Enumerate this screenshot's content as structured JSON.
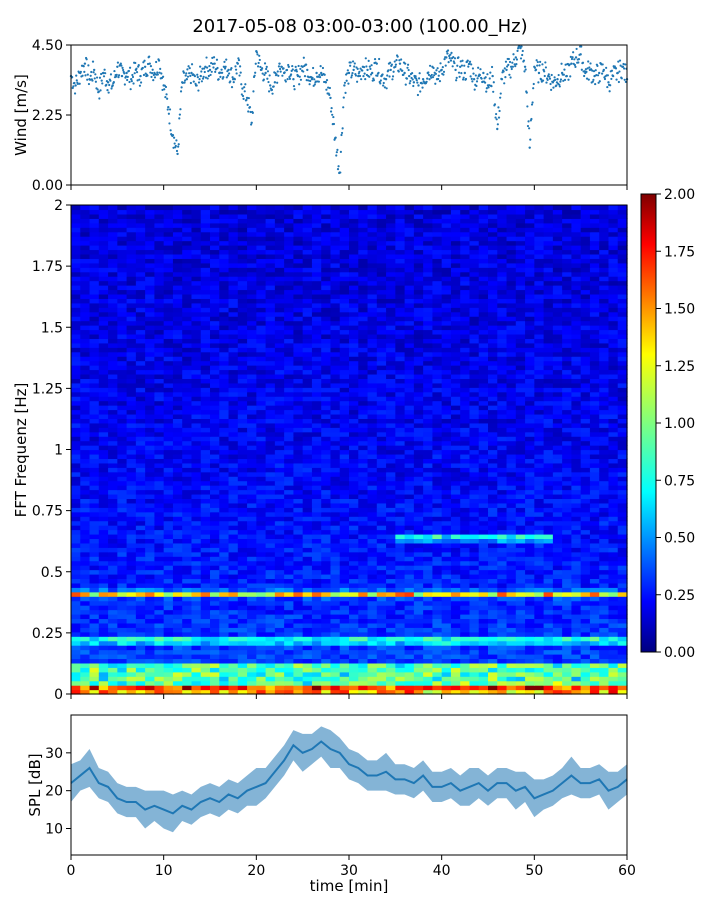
{
  "figure": {
    "title": "2017-05-08 03:00-03:00 (100.00_Hz)"
  },
  "chart_data": [
    {
      "type": "scatter",
      "ylabel": "Wind [m/s]",
      "ylim": [
        0,
        4.5
      ],
      "yticks": [
        "0.00",
        "2.25",
        "4.50"
      ],
      "xlim": [
        0,
        60
      ],
      "color": "#1f77b4",
      "x": [
        0,
        0.5,
        1,
        1.5,
        2,
        2.5,
        3,
        3.5,
        4,
        4.5,
        5,
        5.5,
        6,
        6.5,
        7,
        7.5,
        8,
        8.5,
        9,
        9.5,
        10,
        10.5,
        11,
        11.5,
        12,
        12.5,
        13,
        13.5,
        14,
        14.5,
        15,
        15.5,
        16,
        16.5,
        17,
        17.5,
        18,
        18.5,
        19,
        19.5,
        20,
        20.5,
        21,
        21.5,
        22,
        22.5,
        23,
        23.5,
        24,
        24.5,
        25,
        25.5,
        26,
        26.5,
        27,
        27.5,
        28,
        28.5,
        29,
        29.5,
        30,
        30.5,
        31,
        31.5,
        32,
        32.5,
        33,
        33.5,
        34,
        34.5,
        35,
        35.5,
        36,
        36.5,
        37,
        37.5,
        38,
        38.5,
        39,
        39.5,
        40,
        40.5,
        41,
        41.5,
        42,
        42.5,
        43,
        43.5,
        44,
        44.5,
        45,
        45.5,
        46,
        46.5,
        47,
        47.5,
        48,
        48.5,
        49,
        49.5,
        50,
        50.5,
        51,
        51.5,
        52,
        52.5,
        53,
        53.5,
        54,
        54.5,
        55,
        55.5,
        56,
        56.5,
        57,
        57.5,
        58,
        58.5,
        59,
        59.5,
        60
      ],
      "y": [
        3.5,
        3.2,
        3.6,
        3.9,
        3.4,
        3.7,
        3.0,
        3.6,
        3.3,
        3.2,
        3.8,
        3.5,
        3.6,
        3.4,
        3.7,
        3.5,
        3.8,
        3.9,
        3.6,
        4.0,
        3.2,
        2.5,
        1.6,
        1.0,
        3.3,
        3.4,
        3.6,
        3.2,
        3.5,
        3.8,
        3.7,
        3.9,
        3.6,
        3.8,
        3.7,
        3.4,
        3.9,
        3.1,
        2.8,
        2.0,
        4.3,
        3.7,
        3.6,
        3.2,
        3.3,
        3.9,
        3.6,
        3.8,
        3.4,
        3.5,
        3.8,
        3.7,
        3.4,
        3.6,
        3.6,
        3.3,
        2.8,
        1.5,
        0.4,
        3.2,
        3.6,
        3.7,
        3.5,
        3.8,
        3.7,
        3.6,
        3.9,
        3.5,
        3.4,
        3.7,
        3.8,
        3.9,
        3.6,
        3.5,
        3.3,
        3.2,
        3.4,
        3.6,
        3.8,
        3.4,
        3.7,
        4.1,
        4.0,
        3.7,
        3.8,
        3.6,
        3.9,
        3.4,
        3.5,
        3.6,
        3.2,
        3.5,
        1.8,
        3.4,
        3.7,
        3.8,
        4.1,
        4.4,
        3.8,
        1.2,
        3.8,
        3.6,
        3.7,
        3.5,
        3.3,
        3.4,
        3.6,
        3.5,
        3.9,
        4.1,
        4.2,
        3.6,
        3.7,
        3.5,
        3.6,
        3.7,
        3.3,
        3.5,
        3.6,
        3.8,
        3.4
      ]
    },
    {
      "type": "heatmap",
      "ylabel": "FFT Frequenz [Hz]",
      "ylim": [
        0,
        2
      ],
      "yticks": [
        "0",
        "0.25",
        "0.5",
        "0.75",
        "1",
        "1.25",
        "1.5",
        "1.75",
        "2"
      ],
      "xlim": [
        0,
        60
      ],
      "colorbar": {
        "range": [
          0,
          2
        ],
        "ticks": [
          "0.00",
          "0.25",
          "0.50",
          "0.75",
          "1.00",
          "1.25",
          "1.50",
          "1.75",
          "2.00"
        ],
        "colormap": "jet"
      },
      "features": [
        {
          "freq": 0.41,
          "value": 1.2,
          "from": 0,
          "to": 60
        },
        {
          "freq": 0.02,
          "value": 1.4,
          "from": 0,
          "to": 60
        },
        {
          "freq": 0.22,
          "value": 0.8,
          "from": 0,
          "to": 60
        },
        {
          "freq": 0.64,
          "value": 0.8,
          "from": 35,
          "to": 52
        }
      ]
    },
    {
      "type": "line",
      "ylabel": "SPL [dB]",
      "xlabel": "time [min]",
      "ylim": [
        3,
        40
      ],
      "yticks": [
        "10",
        "20",
        "30"
      ],
      "xlim": [
        0,
        60
      ],
      "xticks": [
        "0",
        "10",
        "20",
        "30",
        "40",
        "50",
        "60"
      ],
      "color": "#1f77b4",
      "x": [
        0,
        1,
        2,
        3,
        4,
        5,
        6,
        7,
        8,
        9,
        10,
        11,
        12,
        13,
        14,
        15,
        16,
        17,
        18,
        19,
        20,
        21,
        22,
        23,
        24,
        25,
        26,
        27,
        28,
        29,
        30,
        31,
        32,
        33,
        34,
        35,
        36,
        37,
        38,
        39,
        40,
        41,
        42,
        43,
        44,
        45,
        46,
        47,
        48,
        49,
        50,
        51,
        52,
        53,
        54,
        55,
        56,
        57,
        58,
        59,
        60
      ],
      "y": [
        22,
        24,
        26,
        22,
        21,
        18,
        17,
        17,
        15,
        16,
        15,
        14,
        16,
        15,
        17,
        18,
        17,
        19,
        18,
        20,
        21,
        22,
        25,
        28,
        32,
        30,
        31,
        33,
        31,
        30,
        27,
        26,
        24,
        24,
        25,
        23,
        23,
        22,
        24,
        21,
        21,
        22,
        20,
        21,
        22,
        20,
        22,
        22,
        20,
        21,
        18,
        19,
        20,
        22,
        24,
        22,
        22,
        23,
        20,
        21,
        23
      ],
      "band": [
        5,
        4,
        5,
        4,
        4,
        4,
        4,
        4,
        5,
        4,
        5,
        5,
        4,
        4,
        4,
        4,
        4,
        4,
        4,
        4,
        5,
        4,
        4,
        4,
        4,
        5,
        4,
        4,
        5,
        4,
        4,
        4,
        4,
        4,
        5,
        4,
        4,
        4,
        4,
        4,
        4,
        4,
        4,
        5,
        4,
        4,
        4,
        4,
        5,
        4,
        5,
        4,
        4,
        4,
        5,
        4,
        4,
        4,
        5,
        4,
        4
      ]
    }
  ]
}
